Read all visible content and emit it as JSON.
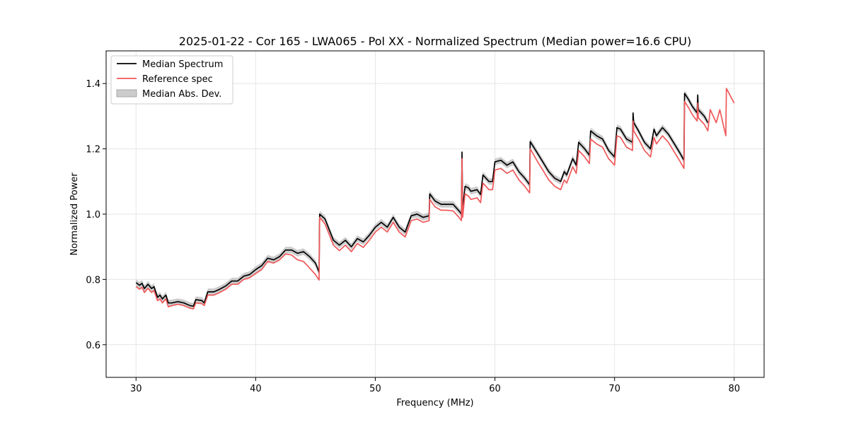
{
  "chart_data": {
    "type": "line",
    "title": "2025-01-22 - Cor 165 - LWA065 - Pol XX - Normalized Spectrum (Median power=16.6 CPU)",
    "xlabel": "Frequency (MHz)",
    "ylabel": "Normalized Power",
    "xlim": [
      27.5,
      82.5
    ],
    "ylim": [
      0.5,
      1.5
    ],
    "xticks": [
      30,
      40,
      50,
      60,
      70,
      80
    ],
    "xtick_labels": [
      "30",
      "40",
      "50",
      "60",
      "70",
      "80"
    ],
    "yticks": [
      0.6,
      0.8,
      1.0,
      1.2,
      1.4
    ],
    "ytick_labels": [
      "0.6",
      "0.8",
      "1.0",
      "1.2",
      "1.4"
    ],
    "grid": true,
    "legend": {
      "position": "top-left",
      "entries": [
        "Median Spectrum",
        "Reference spec",
        "Median Abs. Dev."
      ]
    },
    "series": [
      {
        "name": "Median Spectrum",
        "color": "#000000",
        "x": [
          30.0,
          30.3,
          30.5,
          30.7,
          31.0,
          31.3,
          31.5,
          31.8,
          32.0,
          32.2,
          32.5,
          32.7,
          33.0,
          33.5,
          34.0,
          34.5,
          34.8,
          35.0,
          35.5,
          35.7,
          36.0,
          36.5,
          37.0,
          37.5,
          38.0,
          38.5,
          39.0,
          39.5,
          40.0,
          40.5,
          41.0,
          41.5,
          42.0,
          42.5,
          43.0,
          43.5,
          44.0,
          44.5,
          45.0,
          45.3,
          45.35,
          45.8,
          46.5,
          47.0,
          47.5,
          48.0,
          48.5,
          49.0,
          49.5,
          50.0,
          50.5,
          51.0,
          51.5,
          52.0,
          52.5,
          53.0,
          53.5,
          54.0,
          54.5,
          54.55,
          55.0,
          55.5,
          56.0,
          56.5,
          57.0,
          57.2,
          57.25,
          57.3,
          57.5,
          57.8,
          58.0,
          58.5,
          58.8,
          59.0,
          59.5,
          59.8,
          60.0,
          60.5,
          61.0,
          61.5,
          62.0,
          62.5,
          62.9,
          62.95,
          63.5,
          64.0,
          64.5,
          65.0,
          65.5,
          65.8,
          66.0,
          66.5,
          66.8,
          67.0,
          67.5,
          67.9,
          68.0,
          68.5,
          69.0,
          69.5,
          70.0,
          70.2,
          70.5,
          71.0,
          71.5,
          71.55,
          71.6,
          72.0,
          72.5,
          73.0,
          73.3,
          73.5,
          74.0,
          74.5,
          75.0,
          75.5,
          75.8,
          75.85,
          76.2,
          76.5,
          76.9,
          76.95,
          77.0,
          77.5,
          77.8
        ],
        "values": [
          0.79,
          0.782,
          0.788,
          0.772,
          0.785,
          0.772,
          0.778,
          0.745,
          0.752,
          0.74,
          0.752,
          0.728,
          0.728,
          0.732,
          0.728,
          0.72,
          0.718,
          0.738,
          0.735,
          0.728,
          0.762,
          0.762,
          0.77,
          0.78,
          0.795,
          0.795,
          0.81,
          0.815,
          0.83,
          0.842,
          0.865,
          0.86,
          0.87,
          0.89,
          0.89,
          0.88,
          0.885,
          0.87,
          0.85,
          0.822,
          1.0,
          0.985,
          0.92,
          0.905,
          0.92,
          0.9,
          0.925,
          0.915,
          0.935,
          0.96,
          0.975,
          0.96,
          0.99,
          0.96,
          0.945,
          0.995,
          1.0,
          0.99,
          0.995,
          1.062,
          1.04,
          1.03,
          1.03,
          1.03,
          1.01,
          1.0,
          1.19,
          1.012,
          1.085,
          1.08,
          1.07,
          1.075,
          1.06,
          1.12,
          1.1,
          1.1,
          1.16,
          1.165,
          1.15,
          1.16,
          1.13,
          1.11,
          1.09,
          1.222,
          1.19,
          1.16,
          1.13,
          1.11,
          1.1,
          1.13,
          1.12,
          1.17,
          1.15,
          1.22,
          1.2,
          1.18,
          1.255,
          1.24,
          1.23,
          1.195,
          1.175,
          1.265,
          1.26,
          1.23,
          1.22,
          1.31,
          1.28,
          1.255,
          1.22,
          1.2,
          1.26,
          1.24,
          1.265,
          1.245,
          1.215,
          1.185,
          1.165,
          1.37,
          1.35,
          1.33,
          1.31,
          1.365,
          1.32,
          1.3,
          1.28
        ]
      },
      {
        "name": "Reference spec",
        "color": "#f0585a",
        "x": [
          30.0,
          30.3,
          30.5,
          30.7,
          31.0,
          31.3,
          31.5,
          31.8,
          32.0,
          32.2,
          32.5,
          32.7,
          33.0,
          33.5,
          34.0,
          34.5,
          34.8,
          35.0,
          35.5,
          35.7,
          36.0,
          36.5,
          37.0,
          37.5,
          38.0,
          38.5,
          39.0,
          39.5,
          40.0,
          40.5,
          41.0,
          41.5,
          42.0,
          42.5,
          43.0,
          43.5,
          44.0,
          44.5,
          45.0,
          45.3,
          45.35,
          45.8,
          46.5,
          47.0,
          47.5,
          48.0,
          48.5,
          49.0,
          49.5,
          50.0,
          50.5,
          51.0,
          51.5,
          52.0,
          52.5,
          53.0,
          53.5,
          54.0,
          54.5,
          54.55,
          55.0,
          55.5,
          56.0,
          56.5,
          57.0,
          57.2,
          57.25,
          57.3,
          57.5,
          57.8,
          58.0,
          58.5,
          58.8,
          59.0,
          59.5,
          59.8,
          60.0,
          60.5,
          61.0,
          61.5,
          62.0,
          62.5,
          62.9,
          62.95,
          63.5,
          64.0,
          64.5,
          65.0,
          65.5,
          65.8,
          66.0,
          66.5,
          66.8,
          67.0,
          67.5,
          67.9,
          68.0,
          68.5,
          69.0,
          69.5,
          70.0,
          70.2,
          70.5,
          71.0,
          71.5,
          71.55,
          71.6,
          72.0,
          72.5,
          73.0,
          73.3,
          73.5,
          74.0,
          74.5,
          75.0,
          75.5,
          75.8,
          75.85,
          76.2,
          76.5,
          76.9,
          76.95,
          77.0,
          77.5,
          77.8,
          78.0,
          78.5,
          78.8,
          79.3,
          79.35,
          80.0
        ],
        "values": [
          0.778,
          0.77,
          0.776,
          0.76,
          0.773,
          0.76,
          0.766,
          0.735,
          0.74,
          0.728,
          0.74,
          0.716,
          0.72,
          0.724,
          0.72,
          0.712,
          0.71,
          0.728,
          0.726,
          0.72,
          0.752,
          0.752,
          0.76,
          0.77,
          0.785,
          0.785,
          0.8,
          0.805,
          0.818,
          0.83,
          0.855,
          0.85,
          0.86,
          0.878,
          0.875,
          0.86,
          0.855,
          0.835,
          0.815,
          0.798,
          0.99,
          0.97,
          0.905,
          0.888,
          0.905,
          0.885,
          0.91,
          0.898,
          0.92,
          0.945,
          0.96,
          0.945,
          0.975,
          0.945,
          0.93,
          0.98,
          0.985,
          0.975,
          0.98,
          1.045,
          1.022,
          1.012,
          1.012,
          1.01,
          0.99,
          0.98,
          1.17,
          0.99,
          1.062,
          1.055,
          1.045,
          1.05,
          1.035,
          1.095,
          1.075,
          1.075,
          1.135,
          1.14,
          1.125,
          1.135,
          1.105,
          1.085,
          1.065,
          1.2,
          1.165,
          1.135,
          1.105,
          1.085,
          1.075,
          1.105,
          1.095,
          1.145,
          1.125,
          1.195,
          1.175,
          1.155,
          1.23,
          1.215,
          1.205,
          1.17,
          1.15,
          1.24,
          1.235,
          1.205,
          1.195,
          1.285,
          1.255,
          1.23,
          1.195,
          1.175,
          1.235,
          1.215,
          1.24,
          1.22,
          1.19,
          1.16,
          1.14,
          1.345,
          1.325,
          1.305,
          1.285,
          1.34,
          1.295,
          1.275,
          1.255,
          1.32,
          1.28,
          1.32,
          1.24,
          1.385,
          1.34
        ]
      }
    ],
    "band": {
      "name": "Median Abs. Dev.",
      "color": "#b7b7b7",
      "follows": "Median Spectrum",
      "half_width": 0.01
    }
  }
}
